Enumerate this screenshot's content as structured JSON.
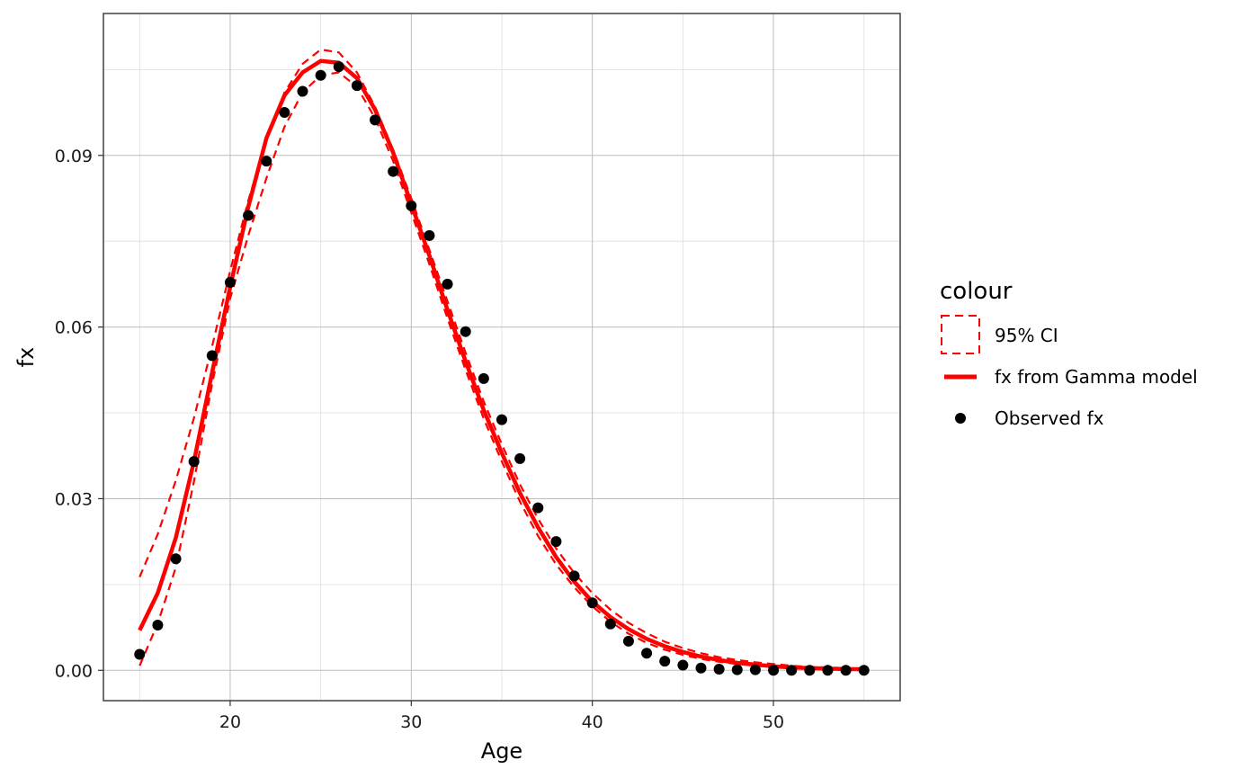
{
  "chart_data": {
    "type": "line",
    "xlabel": "Age",
    "ylabel": "fx",
    "xlim": [
      13,
      57
    ],
    "ylim": [
      -0.0053,
      0.1148
    ],
    "x_ticks": [
      20,
      30,
      40,
      50
    ],
    "y_ticks": [
      0.0,
      0.03,
      0.06,
      0.09
    ],
    "x_tick_labels": [
      "20",
      "30",
      "40",
      "50"
    ],
    "y_tick_labels": [
      "0.00",
      "0.03",
      "0.06",
      "0.09"
    ],
    "grid": true,
    "legend_position": "right",
    "legend_title": "colour",
    "colors": {
      "model": "#ff0000",
      "ci": "#ff0000",
      "observed": "#000000"
    },
    "x": [
      15,
      16,
      17,
      18,
      19,
      20,
      21,
      22,
      23,
      24,
      25,
      26,
      27,
      28,
      29,
      30,
      31,
      32,
      33,
      34,
      35,
      36,
      37,
      38,
      39,
      40,
      41,
      42,
      43,
      44,
      45,
      46,
      47,
      48,
      49,
      50,
      51,
      52,
      53,
      54,
      55
    ],
    "series": [
      {
        "name": "95% CI",
        "style": "dashed",
        "upper": [
          0.0163,
          0.0238,
          0.0332,
          0.0441,
          0.0566,
          0.0698,
          0.0821,
          0.0926,
          0.101,
          0.106,
          0.1085,
          0.108,
          0.1045,
          0.0985,
          0.091,
          0.0825,
          0.0735,
          0.0645,
          0.0555,
          0.047,
          0.0395,
          0.0325,
          0.0265,
          0.0213,
          0.017,
          0.0135,
          0.0106,
          0.0083,
          0.0065,
          0.005,
          0.0039,
          0.003,
          0.0023,
          0.0018,
          0.0014,
          0.0011,
          0.0008,
          0.0006,
          0.0005,
          0.0004,
          0.0003
        ],
        "lower": [
          0.0008,
          0.0082,
          0.018,
          0.033,
          0.05,
          0.065,
          0.076,
          0.086,
          0.095,
          0.101,
          0.104,
          0.1045,
          0.102,
          0.0965,
          0.089,
          0.08,
          0.071,
          0.0615,
          0.0525,
          0.044,
          0.0365,
          0.0295,
          0.0235,
          0.0185,
          0.0145,
          0.0112,
          0.0085,
          0.0064,
          0.0048,
          0.0036,
          0.0027,
          0.002,
          0.0015,
          0.0011,
          0.0008,
          0.0006,
          0.0004,
          0.0003,
          0.0002,
          0.0001,
          0.0001
        ]
      },
      {
        "name": "fx from Gamma model",
        "style": "solid",
        "values": [
          0.007,
          0.0135,
          0.0232,
          0.0365,
          0.052,
          0.067,
          0.081,
          0.093,
          0.1005,
          0.1045,
          0.1065,
          0.1062,
          0.1035,
          0.098,
          0.0905,
          0.0815,
          0.0725,
          0.063,
          0.054,
          0.0455,
          0.038,
          0.031,
          0.025,
          0.0198,
          0.0155,
          0.012,
          0.0093,
          0.0072,
          0.0055,
          0.0042,
          0.0032,
          0.0024,
          0.0018,
          0.0013,
          0.001,
          0.0007,
          0.0005,
          0.0004,
          0.0003,
          0.0002,
          0.0002
        ]
      },
      {
        "name": "Observed fx",
        "style": "points",
        "values": [
          0.0028,
          0.0079,
          0.0195,
          0.0365,
          0.055,
          0.0678,
          0.0795,
          0.089,
          0.0975,
          0.1012,
          0.104,
          0.1055,
          0.1022,
          0.0962,
          0.0872,
          0.0812,
          0.076,
          0.0675,
          0.0592,
          0.051,
          0.0438,
          0.037,
          0.0284,
          0.0225,
          0.0165,
          0.0118,
          0.0081,
          0.0051,
          0.003,
          0.0016,
          0.0009,
          0.0004,
          0.0002,
          0.0001,
          0.0001,
          0.0,
          0.0,
          0.0,
          0.0,
          0.0,
          0.0
        ]
      }
    ]
  }
}
